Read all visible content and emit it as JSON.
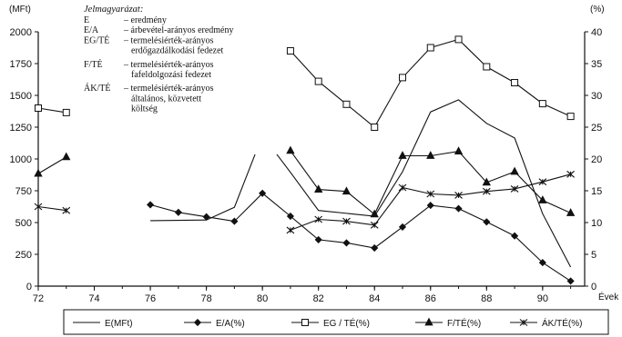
{
  "chart_data": {
    "type": "line",
    "units": {
      "left": "(MFt)",
      "right": "(%)"
    },
    "x_axis_end_label": "Évek",
    "x_ticks": [
      "72",
      "74",
      "76",
      "78",
      "80",
      "82",
      "84",
      "86",
      "88",
      "90"
    ],
    "y_left_ticks": [
      "2000",
      "1750",
      "1500",
      "1250",
      "1000",
      "750",
      "500",
      "250",
      "0"
    ],
    "y_right_ticks": [
      "40",
      "35",
      "30",
      "25",
      "20",
      "15",
      "10",
      "5",
      "0"
    ],
    "ylim_left": [
      0,
      2000
    ],
    "ylim_right": [
      0,
      40
    ],
    "xlim": [
      72,
      91.5
    ],
    "grid": false,
    "explanation": {
      "title": "Jelmagyarázat:",
      "rows": [
        {
          "abbr": "E",
          "lines": [
            "– eredmény"
          ]
        },
        {
          "abbr": "E/A",
          "lines": [
            "– árbevétel-arányos eredmény"
          ]
        },
        {
          "abbr": "EG/TÉ",
          "lines": [
            "– termelésiérték-arányos",
            "erdőgazdálkodási fedezet"
          ]
        },
        {
          "abbr": "F/TÉ",
          "lines": [
            "– termelésiérték-arányos",
            "fafeldolgozási fedezet"
          ]
        },
        {
          "abbr": "ÁK/TÉ",
          "lines": [
            "– termelésiérték-arányos",
            "általános, közvetett",
            "költség"
          ]
        }
      ]
    },
    "series": [
      {
        "name": "E(MFt)",
        "axis": "left",
        "marker": "none",
        "segments": [
          [
            [
              76,
              515
            ],
            [
              78,
              520
            ],
            [
              79,
              620
            ],
            [
              80,
              1185
            ],
            [
              81,
              895
            ],
            [
              82,
              595
            ],
            [
              84,
              550
            ],
            [
              85,
              900
            ],
            [
              86,
              1370
            ],
            [
              87,
              1465
            ],
            [
              88,
              1280
            ],
            [
              89,
              1165
            ],
            [
              90,
              570
            ],
            [
              91,
              150
            ]
          ]
        ]
      },
      {
        "name": "E/A(%)",
        "axis": "right",
        "marker": "diamond",
        "segments": [
          [
            [
              76,
              12.8
            ],
            [
              77,
              11.6
            ],
            [
              78,
              10.9
            ],
            [
              79,
              10.2
            ],
            [
              80,
              14.6
            ],
            [
              81,
              11.0
            ],
            [
              82,
              7.3
            ],
            [
              83,
              6.8
            ],
            [
              84,
              6.0
            ],
            [
              85,
              9.3
            ],
            [
              86,
              12.7
            ],
            [
              87,
              12.2
            ],
            [
              88,
              10.1
            ],
            [
              89,
              7.9
            ],
            [
              90,
              3.7
            ],
            [
              91,
              0.8
            ]
          ]
        ]
      },
      {
        "name": "EG / TÉ(%)",
        "axis": "right",
        "marker": "square",
        "segments": [
          [
            [
              72,
              28.0
            ],
            [
              73,
              27.3
            ]
          ],
          [
            [
              81,
              37.0
            ],
            [
              82,
              32.2
            ],
            [
              83,
              28.6
            ],
            [
              84,
              25.0
            ],
            [
              85,
              32.8
            ],
            [
              86,
              37.5
            ],
            [
              87,
              38.8
            ],
            [
              88,
              34.5
            ],
            [
              89,
              32.0
            ],
            [
              90,
              28.7
            ],
            [
              91,
              26.7
            ]
          ]
        ]
      },
      {
        "name": "F/TÉ(%)",
        "axis": "right",
        "marker": "triangle",
        "segments": [
          [
            [
              72,
              17.7
            ],
            [
              73,
              20.3
            ]
          ],
          [
            [
              81,
              21.3
            ],
            [
              82,
              15.2
            ],
            [
              83,
              14.9
            ],
            [
              84,
              11.3
            ],
            [
              85,
              20.5
            ],
            [
              86,
              20.5
            ],
            [
              87,
              21.2
            ],
            [
              88,
              16.3
            ],
            [
              89,
              18.0
            ],
            [
              90,
              13.5
            ],
            [
              91,
              11.5
            ]
          ]
        ]
      },
      {
        "name": "ÁK/TÉ(%)",
        "axis": "right",
        "marker": "x",
        "segments": [
          [
            [
              72,
              12.5
            ],
            [
              73,
              11.9
            ]
          ],
          [
            [
              81,
              8.8
            ],
            [
              82,
              10.5
            ],
            [
              83,
              10.2
            ],
            [
              84,
              9.6
            ],
            [
              85,
              15.5
            ],
            [
              86,
              14.5
            ],
            [
              87,
              14.3
            ],
            [
              88,
              14.9
            ],
            [
              89,
              15.3
            ],
            [
              90,
              16.4
            ],
            [
              91,
              17.6
            ]
          ]
        ]
      }
    ]
  }
}
